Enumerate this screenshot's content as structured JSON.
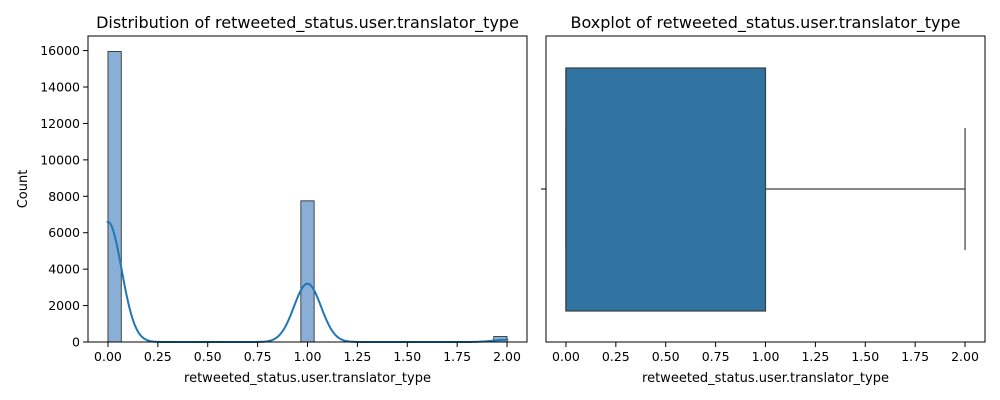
{
  "colors": {
    "hist_fill": "#89afd6",
    "hist_edge": "#1f1f1f",
    "kde": "#1f77b4",
    "box_fill": "#3274a1",
    "box_edge": "#3d3d3d",
    "axis": "#000000"
  },
  "chart_data": [
    {
      "type": "bar",
      "subtype": "histogram-with-kde",
      "title": "Distribution of retweeted_status.user.translator_type",
      "xlabel": "retweeted_status.user.translator_type",
      "ylabel": "Count",
      "xlim": [
        -0.1,
        2.1
      ],
      "ylim": [
        0,
        16800
      ],
      "xticks": [
        0.0,
        0.25,
        0.5,
        0.75,
        1.0,
        1.25,
        1.5,
        1.75,
        2.0
      ],
      "xtick_labels": [
        "0.00",
        "0.25",
        "0.50",
        "0.75",
        "1.00",
        "1.25",
        "1.50",
        "1.75",
        "2.00"
      ],
      "yticks": [
        0,
        2000,
        4000,
        6000,
        8000,
        10000,
        12000,
        14000,
        16000
      ],
      "ytick_labels": [
        "0",
        "2000",
        "4000",
        "6000",
        "8000",
        "10000",
        "12000",
        "14000",
        "16000"
      ],
      "bins": [
        {
          "x0": 0.0,
          "x1": 0.0667,
          "count": 15950
        },
        {
          "x0": 0.9667,
          "x1": 1.0333,
          "count": 7750
        },
        {
          "x0": 1.9333,
          "x1": 2.0,
          "count": 300
        }
      ],
      "kde": {
        "peaks": [
          {
            "x": 0.0,
            "y": 6600,
            "bandwidth": 0.068
          },
          {
            "x": 1.0,
            "y": 3200,
            "bandwidth": 0.068
          },
          {
            "x": 2.0,
            "y": 125,
            "bandwidth": 0.068
          }
        ]
      },
      "grid": false
    },
    {
      "type": "boxplot",
      "title": "Boxplot of retweeted_status.user.translator_type",
      "xlabel": "retweeted_status.user.translator_type",
      "xlim": [
        -0.1,
        2.1
      ],
      "xticks": [
        0.0,
        0.25,
        0.5,
        0.75,
        1.0,
        1.25,
        1.5,
        1.75,
        2.0
      ],
      "xtick_labels": [
        "0.00",
        "0.25",
        "0.50",
        "0.75",
        "1.00",
        "1.25",
        "1.50",
        "1.75",
        "2.00"
      ],
      "min": 0.0,
      "q1": 0.0,
      "median": 0.0,
      "q3": 1.0,
      "max": 2.0,
      "grid": false
    }
  ]
}
